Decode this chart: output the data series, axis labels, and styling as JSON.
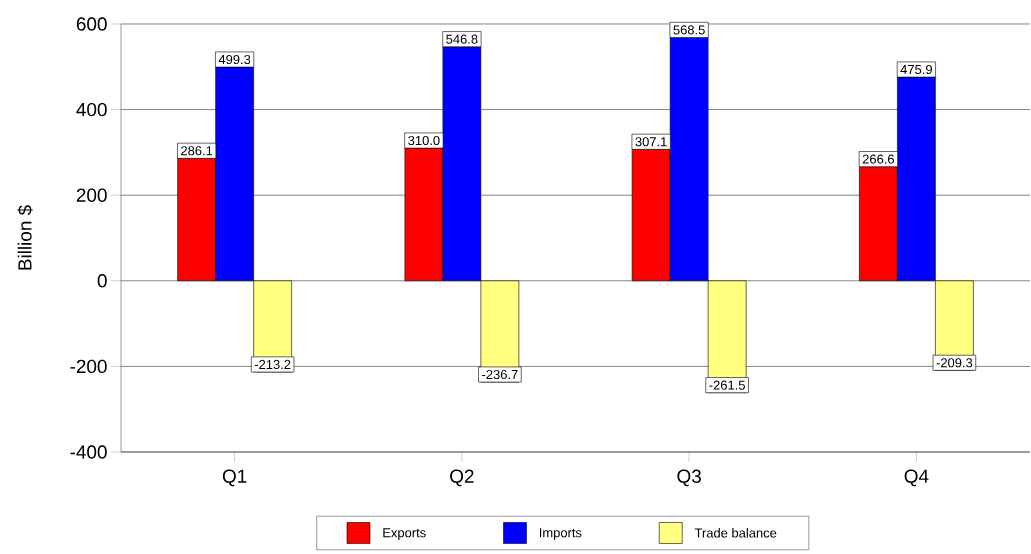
{
  "chart_data": {
    "type": "bar",
    "ylabel": "Billion $",
    "categories": [
      "Q1",
      "Q2",
      "Q3",
      "Q4"
    ],
    "series": [
      {
        "name": "Exports",
        "color": "#ff0000",
        "values": [
          286.1,
          310.0,
          307.1,
          266.6
        ],
        "value_labels": [
          "286.1",
          "310.0",
          "307.1",
          "266.6"
        ]
      },
      {
        "name": "Imports",
        "color": "#0000ff",
        "values": [
          499.3,
          546.8,
          568.5,
          475.9
        ],
        "value_labels": [
          "499.3",
          "546.8",
          "568.5",
          "475.9"
        ]
      },
      {
        "name": "Trade balance",
        "color": "#ffff80",
        "values": [
          -213.2,
          -236.7,
          -261.5,
          -209.3
        ],
        "value_labels": [
          "-213.2",
          "-236.7",
          "-261.5",
          "-209.3"
        ]
      }
    ],
    "ylim": [
      -400,
      600
    ],
    "yticks": [
      -400,
      -200,
      0,
      200,
      400,
      600
    ],
    "grid": "y",
    "legend": "bottom"
  }
}
